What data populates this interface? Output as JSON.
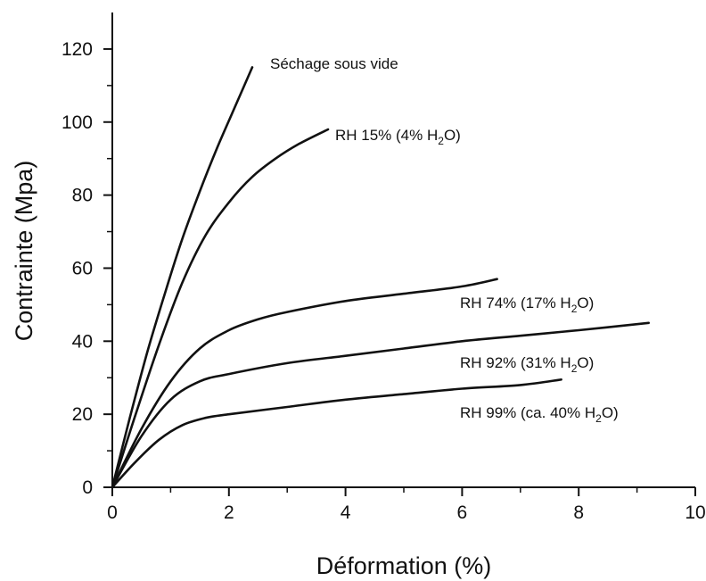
{
  "chart_data": {
    "type": "line",
    "xlabel": "Déformation (%)",
    "ylabel": "Contrainte (Mpa)",
    "xlim": [
      0,
      10
    ],
    "ylim": [
      0,
      130
    ],
    "xticks": [
      "0",
      "2",
      "4",
      "6",
      "8",
      "10"
    ],
    "yticks": [
      "0",
      "20",
      "40",
      "60",
      "80",
      "100",
      "120"
    ],
    "grid": false,
    "series": [
      {
        "name": "Séchage sous vide",
        "label_parts": [
          "Séchage sous vide"
        ],
        "x": [
          0,
          0.3,
          0.6,
          0.9,
          1.2,
          1.5,
          1.8,
          2.1,
          2.4
        ],
        "y": [
          0,
          19,
          37,
          53,
          68,
          81,
          93,
          104,
          115
        ]
      },
      {
        "name": "RH 15% (4% H2O)",
        "label_parts": [
          "RH 15% (4% H",
          "2",
          "O)"
        ],
        "x": [
          0,
          0.4,
          0.8,
          1.2,
          1.6,
          2.0,
          2.4,
          2.8,
          3.2,
          3.7
        ],
        "y": [
          0,
          20,
          39,
          56,
          69,
          78,
          85,
          90,
          94,
          98
        ]
      },
      {
        "name": "RH 74% (17% H2O)",
        "label_parts": [
          "RH 74% (17% H",
          "2",
          "O)"
        ],
        "x": [
          0,
          0.5,
          1.0,
          1.5,
          2.0,
          2.5,
          3.0,
          4.0,
          5.0,
          6.0,
          6.6
        ],
        "y": [
          0,
          16,
          29,
          38,
          43,
          46,
          48,
          51,
          53,
          55,
          57
        ]
      },
      {
        "name": "RH 92% (31% H2O)",
        "label_parts": [
          "RH 92% (31% H",
          "2",
          "O)"
        ],
        "x": [
          0,
          0.5,
          1.0,
          1.5,
          2.0,
          3.0,
          4.0,
          5.0,
          6.0,
          7.0,
          8.0,
          9.2
        ],
        "y": [
          0,
          14,
          24,
          29,
          31,
          34,
          36,
          38,
          40,
          41.5,
          43,
          45
        ]
      },
      {
        "name": "RH 99% (ca. 40% H2O)",
        "label_parts": [
          "RH 99% (ca. 40% H",
          "2",
          "O)"
        ],
        "x": [
          0,
          0.4,
          0.8,
          1.2,
          1.6,
          2.0,
          3.0,
          4.0,
          5.0,
          6.0,
          7.0,
          7.7
        ],
        "y": [
          0,
          7,
          13,
          17,
          19,
          20,
          22,
          24,
          25.5,
          27,
          28,
          29.5
        ]
      }
    ]
  }
}
